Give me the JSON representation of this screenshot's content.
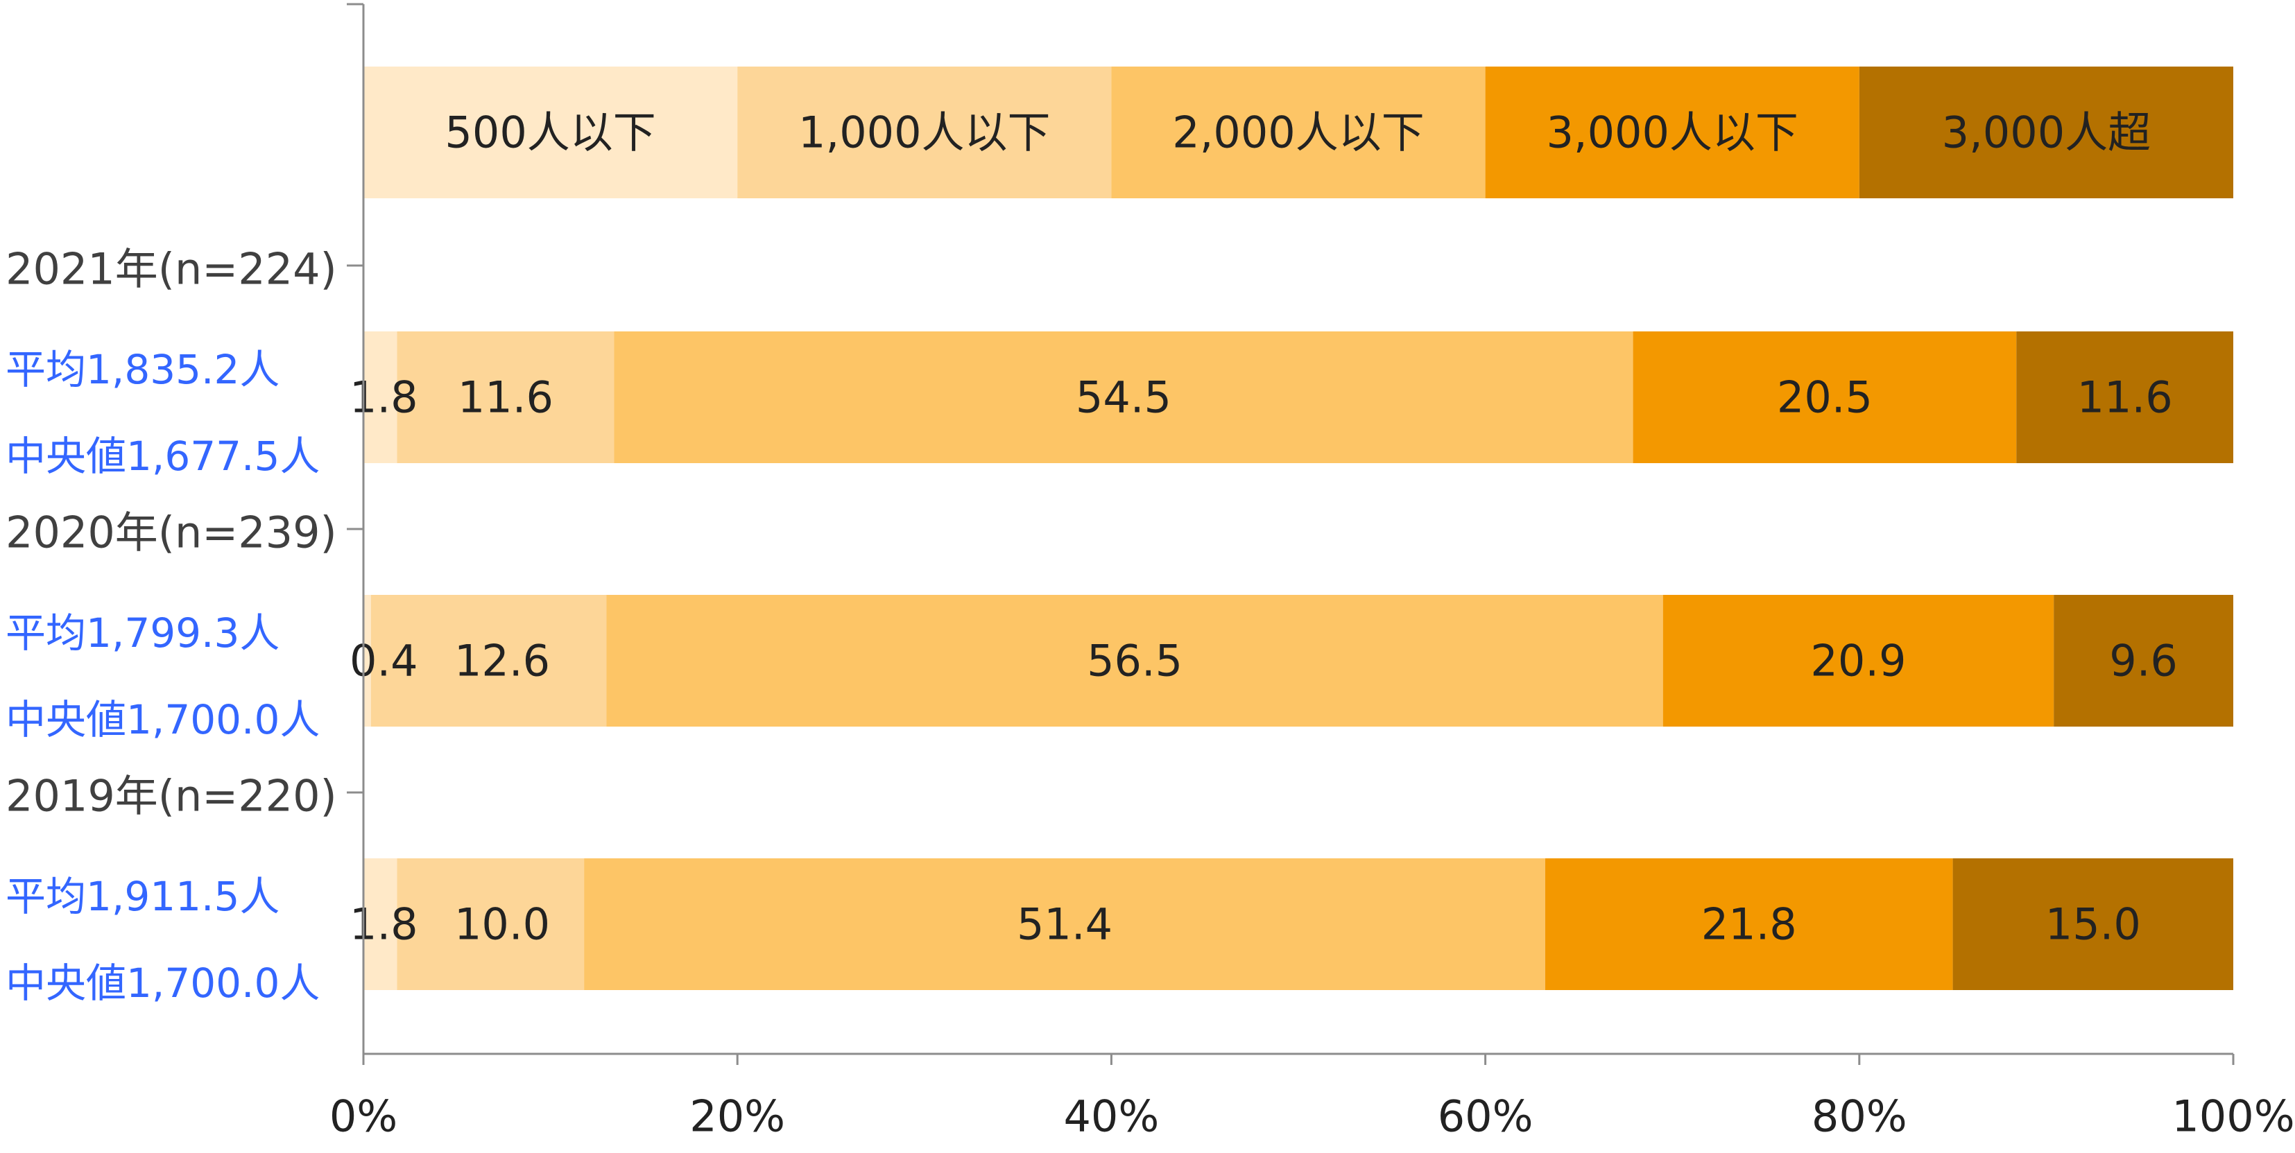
{
  "chart_data": {
    "type": "bar",
    "orientation": "horizontal",
    "stacked": "percent",
    "title": "",
    "xlabel": "",
    "ylabel": "",
    "xlim": [
      0,
      100
    ],
    "x_ticks": [
      "0%",
      "20%",
      "40%",
      "60%",
      "80%",
      "100%"
    ],
    "grid": false,
    "legend": {
      "placement": "top",
      "style": "stacked-bar",
      "entries": [
        "500人以下",
        "1,000人以下",
        "2,000人以下",
        "3,000人以下",
        "3,000人超"
      ]
    },
    "series": [
      {
        "name": "500人以下",
        "color": "#FFE9C8"
      },
      {
        "name": "1,000人以下",
        "color": "#FDD698"
      },
      {
        "name": "2,000人以下",
        "color": "#FDC566"
      },
      {
        "name": "3,000人以下",
        "color": "#F39800"
      },
      {
        "name": "3,000人超",
        "color": "#B47100"
      }
    ],
    "rows": [
      {
        "label": "2021年(n=224)",
        "mean": "平均1,835.2人",
        "median": "中央値1,677.5人",
        "values": [
          1.8,
          11.6,
          54.5,
          20.5,
          11.6
        ],
        "value_labels": [
          "1.8",
          "11.6",
          "54.5",
          "20.5",
          "11.6"
        ]
      },
      {
        "label": "2020年(n=239)",
        "mean": "平均1,799.3人",
        "median": "中央値1,700.0人",
        "values": [
          0.4,
          12.6,
          56.5,
          20.9,
          9.6
        ],
        "value_labels": [
          "0.4",
          "12.6",
          "56.5",
          "20.9",
          "9.6"
        ]
      },
      {
        "label": "2019年(n=220)",
        "mean": "平均1,911.5人",
        "median": "中央値1,700.0人",
        "values": [
          1.8,
          10.0,
          51.4,
          21.8,
          15.0
        ],
        "value_labels": [
          "1.8",
          "10.0",
          "51.4",
          "21.8",
          "15.0"
        ]
      }
    ],
    "colors": {
      "row_label": "#404040",
      "stat_label": "#3366FF",
      "value_label": "#222222",
      "axis": "#8C8C8C"
    }
  }
}
